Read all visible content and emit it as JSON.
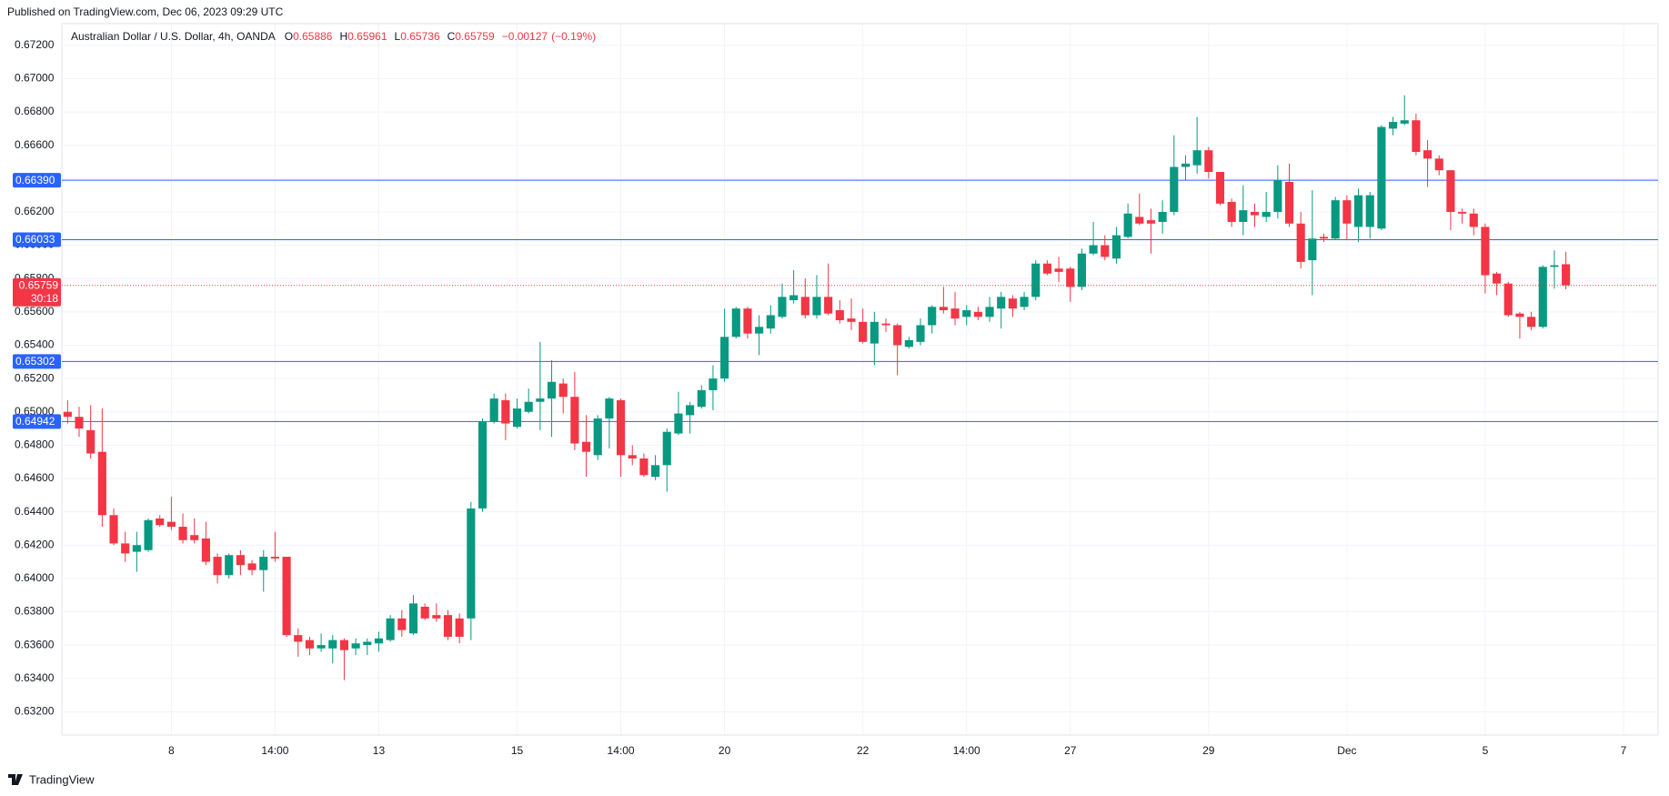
{
  "chart_data": {
    "type": "candlestick",
    "source": "Published on TradingView.com, Dec 06, 2023 09:29 UTC",
    "title": "Australian Dollar / U.S. Dollar, 4h, OANDA",
    "legend_keys": [
      "O",
      "H",
      "L",
      "C"
    ],
    "change": {
      "value": -0.00127,
      "label": "−0.00127"
    },
    "change_percent": {
      "value": -0.19,
      "label": "(−0.19%)"
    },
    "countdown": "30:18",
    "brand": "TradingView",
    "up_color": "#089981",
    "down_color": "#f23645",
    "hline_color": "#2962ff",
    "grid": true,
    "ylim": [
      0.6306,
      0.6733
    ],
    "yticks": [
      {
        "value": 0.632,
        "label": "0.63200"
      },
      {
        "value": 0.634,
        "label": "0.63400"
      },
      {
        "value": 0.636,
        "label": "0.63600"
      },
      {
        "value": 0.638,
        "label": "0.63800"
      },
      {
        "value": 0.64,
        "label": "0.64000"
      },
      {
        "value": 0.642,
        "label": "0.64200"
      },
      {
        "value": 0.644,
        "label": "0.64400"
      },
      {
        "value": 0.646,
        "label": "0.64600"
      },
      {
        "value": 0.648,
        "label": "0.64800"
      },
      {
        "value": 0.65,
        "label": "0.65000"
      },
      {
        "value": 0.652,
        "label": "0.65200"
      },
      {
        "value": 0.654,
        "label": "0.65400"
      },
      {
        "value": 0.656,
        "label": "0.65600"
      },
      {
        "value": 0.658,
        "label": "0.65800"
      },
      {
        "value": 0.66,
        "label": "0.66000"
      },
      {
        "value": 0.662,
        "label": "0.66200"
      },
      {
        "value": 0.664,
        "label": "0.66400"
      },
      {
        "value": 0.666,
        "label": "0.66600"
      },
      {
        "value": 0.668,
        "label": "0.66800"
      },
      {
        "value": 0.67,
        "label": "0.67000"
      },
      {
        "value": 0.672,
        "label": "0.67200"
      }
    ],
    "hlines": [
      {
        "value": 0.6639,
        "label": "0.66390"
      },
      {
        "value": 0.66033,
        "label": "0.66033"
      },
      {
        "value": 0.65302,
        "label": "0.65302"
      },
      {
        "value": 0.64942,
        "label": "0.64942"
      }
    ],
    "categories": [
      null,
      null,
      null,
      null,
      null,
      null,
      null,
      null,
      null,
      "8",
      null,
      null,
      null,
      null,
      null,
      null,
      null,
      null,
      "14:00",
      null,
      null,
      null,
      null,
      null,
      null,
      null,
      null,
      "13",
      null,
      null,
      null,
      null,
      null,
      null,
      null,
      null,
      null,
      null,
      null,
      "15",
      null,
      null,
      null,
      null,
      null,
      null,
      null,
      null,
      "14:00",
      null,
      null,
      null,
      null,
      null,
      null,
      null,
      null,
      "20",
      null,
      null,
      null,
      null,
      null,
      null,
      null,
      null,
      null,
      null,
      null,
      "22",
      null,
      null,
      null,
      null,
      null,
      null,
      null,
      null,
      "14:00",
      null,
      null,
      null,
      null,
      null,
      null,
      null,
      null,
      "27",
      null,
      null,
      null,
      null,
      null,
      null,
      null,
      null,
      null,
      null,
      null,
      "29",
      null,
      null,
      null,
      null,
      null,
      null,
      null,
      null,
      null,
      null,
      null,
      "Dec",
      null,
      null,
      null,
      null,
      null,
      null,
      null,
      null,
      null,
      null,
      null,
      "5",
      null,
      null,
      null,
      null,
      null,
      null,
      null,
      null,
      null,
      null,
      null,
      "7"
    ],
    "open": [
      0.65,
      0.6497,
      0.6489,
      0.6476,
      0.6438,
      0.6421,
      0.6416,
      0.6417,
      0.6436,
      0.6434,
      0.6431,
      0.6426,
      0.6424,
      0.6413,
      0.6402,
      0.6414,
      0.6409,
      0.6405,
      0.6413,
      0.6413,
      0.6366,
      0.6363,
      0.6358,
      0.6358,
      0.6363,
      0.6358,
      0.636,
      0.6361,
      0.6363,
      0.6376,
      0.6367,
      0.6383,
      0.6378,
      0.6378,
      0.6376,
      0.6376,
      0.6442,
      0.6494,
      0.6507,
      0.6491,
      0.65,
      0.6506,
      0.6508,
      0.6517,
      0.6509,
      0.6482,
      0.6474,
      0.6496,
      0.6507,
      0.6474,
      0.6472,
      0.6461,
      0.6468,
      0.6487,
      0.6498,
      0.6503,
      0.6513,
      0.652,
      0.6545,
      0.6562,
      0.6547,
      0.655,
      0.6557,
      0.6567,
      0.6569,
      0.6558,
      0.6569,
      0.6561,
      0.6556,
      0.6554,
      0.6541,
      0.6553,
      0.6552,
      0.6539,
      0.6542,
      0.6552,
      0.6563,
      0.6562,
      0.6557,
      0.656,
      0.6557,
      0.6562,
      0.6568,
      0.6563,
      0.6569,
      0.6589,
      0.6586,
      0.6586,
      0.6575,
      0.6595,
      0.66,
      0.6592,
      0.6605,
      0.6617,
      0.6615,
      0.6614,
      0.662,
      0.6647,
      0.6648,
      0.6657,
      0.6644,
      0.6626,
      0.6614,
      0.662,
      0.6617,
      0.662,
      0.6638,
      0.6613,
      0.6591,
      0.6605,
      0.6604,
      0.6627,
      0.6611,
      0.6611,
      0.661,
      0.667,
      0.6673,
      0.6675,
      0.6657,
      0.6652,
      0.6645,
      0.662,
      0.6619,
      0.6611,
      0.6583,
      0.6577,
      0.6559,
      0.6557,
      0.6551,
      0.6587,
      0.65886,
      null,
      null,
      null,
      null,
      null
    ],
    "high": [
      0.6507,
      0.6503,
      0.6504,
      0.6502,
      0.6442,
      0.6428,
      0.6428,
      0.6436,
      0.6438,
      0.6449,
      0.6439,
      0.6436,
      0.6434,
      0.6415,
      0.6415,
      0.6417,
      0.6411,
      0.6417,
      0.6428,
      0.6413,
      0.637,
      0.6365,
      0.6367,
      0.6366,
      0.6364,
      0.6364,
      0.6364,
      0.6368,
      0.6378,
      0.6381,
      0.639,
      0.6385,
      0.6385,
      0.6381,
      0.6379,
      0.6446,
      0.6496,
      0.6511,
      0.6511,
      0.6508,
      0.6514,
      0.6542,
      0.6531,
      0.652,
      0.6524,
      0.6498,
      0.6498,
      0.6509,
      0.6508,
      0.648,
      0.6475,
      0.6474,
      0.649,
      0.6512,
      0.6506,
      0.6516,
      0.6528,
      0.6562,
      0.6563,
      0.6563,
      0.6558,
      0.6564,
      0.6577,
      0.6585,
      0.658,
      0.6582,
      0.6589,
      0.6567,
      0.6568,
      0.6562,
      0.656,
      0.6556,
      0.6553,
      0.6545,
      0.6556,
      0.6564,
      0.6575,
      0.6572,
      0.6564,
      0.6563,
      0.6569,
      0.6572,
      0.657,
      0.6572,
      0.6591,
      0.6591,
      0.6593,
      0.6587,
      0.6598,
      0.6614,
      0.6606,
      0.6611,
      0.6625,
      0.6631,
      0.6622,
      0.6627,
      0.6666,
      0.6654,
      0.6677,
      0.6659,
      0.6644,
      0.6628,
      0.6636,
      0.6625,
      0.6632,
      0.6648,
      0.6649,
      0.662,
      0.6633,
      0.6607,
      0.6629,
      0.663,
      0.6634,
      0.6632,
      0.6672,
      0.6677,
      0.669,
      0.6679,
      0.6663,
      0.6654,
      0.6645,
      0.6622,
      0.6622,
      0.6613,
      0.6584,
      0.6578,
      0.656,
      0.656,
      0.6588,
      0.6597,
      0.65961,
      null,
      null,
      null,
      null,
      null
    ],
    "low": [
      0.6493,
      0.6485,
      0.6472,
      0.6431,
      0.642,
      0.641,
      0.6404,
      0.6416,
      0.6431,
      0.6429,
      0.6421,
      0.6421,
      0.6408,
      0.6397,
      0.64,
      0.6402,
      0.6402,
      0.6392,
      0.641,
      0.6365,
      0.6353,
      0.6354,
      0.6356,
      0.6349,
      0.6339,
      0.6354,
      0.6354,
      0.6356,
      0.6362,
      0.6365,
      0.6366,
      0.6375,
      0.6374,
      0.6363,
      0.6361,
      0.6363,
      0.644,
      0.6493,
      0.6483,
      0.649,
      0.6499,
      0.6489,
      0.6485,
      0.6499,
      0.6477,
      0.6461,
      0.6471,
      0.6478,
      0.6461,
      0.6468,
      0.6461,
      0.6459,
      0.6452,
      0.6486,
      0.6487,
      0.6502,
      0.6501,
      0.6518,
      0.6544,
      0.6544,
      0.6534,
      0.6547,
      0.6556,
      0.6565,
      0.6556,
      0.6556,
      0.6558,
      0.6553,
      0.6549,
      0.6541,
      0.6528,
      0.6548,
      0.6522,
      0.6538,
      0.654,
      0.6547,
      0.6559,
      0.6552,
      0.6552,
      0.6555,
      0.6554,
      0.655,
      0.6557,
      0.6561,
      0.6567,
      0.6582,
      0.6578,
      0.6566,
      0.6573,
      0.6594,
      0.6591,
      0.6589,
      0.6604,
      0.6612,
      0.6595,
      0.6607,
      0.6618,
      0.6639,
      0.6643,
      0.664,
      0.6624,
      0.6611,
      0.6606,
      0.6611,
      0.6614,
      0.6616,
      0.6611,
      0.6586,
      0.657,
      0.6602,
      0.6603,
      0.6603,
      0.6602,
      0.6604,
      0.6609,
      0.6666,
      0.6672,
      0.6654,
      0.6635,
      0.6642,
      0.6609,
      0.6613,
      0.6606,
      0.6571,
      0.657,
      0.6557,
      0.6544,
      0.6549,
      0.655,
      0.6574,
      0.65736,
      null,
      null,
      null,
      null,
      null
    ],
    "close": [
      0.6497,
      0.649,
      0.6475,
      0.6438,
      0.6421,
      0.6415,
      0.642,
      0.6435,
      0.6432,
      0.6431,
      0.6423,
      0.6423,
      0.641,
      0.6402,
      0.6414,
      0.6408,
      0.6405,
      0.6413,
      0.6412,
      0.6366,
      0.6362,
      0.6358,
      0.636,
      0.6363,
      0.6357,
      0.6361,
      0.6362,
      0.6364,
      0.6376,
      0.6369,
      0.6385,
      0.6376,
      0.6376,
      0.6365,
      0.6365,
      0.6442,
      0.6494,
      0.6508,
      0.6493,
      0.6502,
      0.6506,
      0.6508,
      0.6518,
      0.6509,
      0.6481,
      0.6476,
      0.6496,
      0.6508,
      0.6474,
      0.6472,
      0.6462,
      0.6468,
      0.6488,
      0.6499,
      0.6504,
      0.6513,
      0.652,
      0.6545,
      0.6562,
      0.6547,
      0.6551,
      0.6558,
      0.6569,
      0.657,
      0.6558,
      0.6569,
      0.6559,
      0.6555,
      0.6554,
      0.6542,
      0.6554,
      0.6552,
      0.654,
      0.6543,
      0.6552,
      0.6563,
      0.6561,
      0.6556,
      0.6561,
      0.6557,
      0.6563,
      0.6569,
      0.6562,
      0.6569,
      0.6589,
      0.6583,
      0.6584,
      0.6575,
      0.6595,
      0.66,
      0.6593,
      0.6606,
      0.6619,
      0.6613,
      0.6613,
      0.662,
      0.6647,
      0.6649,
      0.6657,
      0.6644,
      0.6625,
      0.6614,
      0.6621,
      0.6618,
      0.662,
      0.6639,
      0.6613,
      0.659,
      0.6604,
      0.6604,
      0.6627,
      0.6613,
      0.663,
      0.663,
      0.6671,
      0.6674,
      0.6675,
      0.6656,
      0.6652,
      0.6645,
      0.662,
      0.6619,
      0.6611,
      0.6582,
      0.6577,
      0.6558,
      0.6557,
      0.6551,
      0.6587,
      0.6588,
      0.65759,
      null,
      null,
      null,
      null,
      null
    ]
  }
}
